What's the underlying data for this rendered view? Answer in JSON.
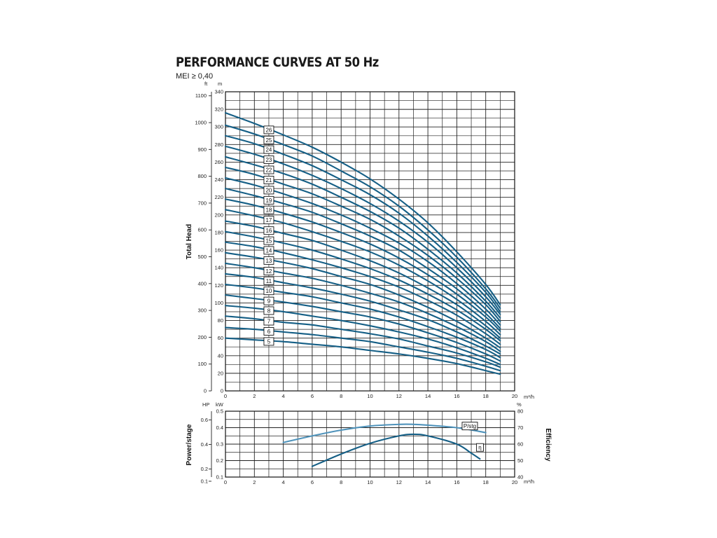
{
  "title": "PERFORMANCE CURVES AT 50 Hz",
  "subtitle": "MEI ≥ 0,40",
  "colors": {
    "curve": "#155f86",
    "curve_secondary": "#4f93bb",
    "grid": "#222222"
  },
  "chart_data": [
    {
      "type": "line",
      "xlabel": "m³/h",
      "ylabel": "Total Head",
      "y_units": [
        "ft",
        "m"
      ],
      "xlim": [
        0,
        20
      ],
      "ylim": [
        0,
        340
      ],
      "ylim_ft": [
        0,
        1115
      ],
      "x_ticks": [
        0,
        2,
        4,
        6,
        8,
        10,
        12,
        14,
        16,
        18,
        20
      ],
      "y_ticks_m": [
        0,
        20,
        40,
        60,
        80,
        100,
        120,
        140,
        160,
        180,
        200,
        220,
        240,
        260,
        280,
        300,
        320,
        340
      ],
      "y_ticks_ft": [
        0,
        100,
        200,
        300,
        400,
        500,
        600,
        700,
        800,
        900,
        1000,
        1100
      ],
      "grid": true,
      "series_label_x": 3,
      "curve_x": [
        0,
        2,
        4,
        6,
        8,
        10,
        12,
        14,
        16,
        18,
        19
      ],
      "series": [
        {
          "name": "5",
          "values": [
            60,
            58,
            56,
            53,
            50,
            46,
            42,
            37,
            31,
            23,
            19
          ]
        },
        {
          "name": "6",
          "values": [
            72,
            70,
            67,
            64,
            60,
            56,
            50,
            44,
            37,
            28,
            23
          ]
        },
        {
          "name": "7",
          "values": [
            85,
            82,
            78,
            75,
            70,
            65,
            59,
            51,
            43,
            33,
            27
          ]
        },
        {
          "name": "8",
          "values": [
            97,
            94,
            90,
            85,
            80,
            74,
            67,
            59,
            49,
            37,
            30
          ]
        },
        {
          "name": "9",
          "values": [
            109,
            105,
            101,
            96,
            90,
            84,
            76,
            66,
            55,
            42,
            34
          ]
        },
        {
          "name": "10",
          "values": [
            121,
            117,
            112,
            107,
            100,
            93,
            84,
            73,
            61,
            47,
            38
          ]
        },
        {
          "name": "11",
          "values": [
            133,
            129,
            123,
            117,
            110,
            102,
            92,
            81,
            67,
            51,
            42
          ]
        },
        {
          "name": "12",
          "values": [
            145,
            140,
            134,
            128,
            120,
            111,
            101,
            88,
            73,
            56,
            45
          ]
        },
        {
          "name": "13",
          "values": [
            157,
            152,
            146,
            139,
            130,
            121,
            109,
            95,
            79,
            60,
            49
          ]
        },
        {
          "name": "14",
          "values": [
            169,
            164,
            157,
            149,
            140,
            130,
            118,
            103,
            86,
            65,
            53
          ]
        },
        {
          "name": "15",
          "values": [
            181,
            175,
            168,
            160,
            150,
            139,
            126,
            110,
            92,
            70,
            57
          ]
        },
        {
          "name": "16",
          "values": [
            193,
            187,
            179,
            171,
            160,
            148,
            134,
            117,
            98,
            74,
            60
          ]
        },
        {
          "name": "17",
          "values": [
            206,
            199,
            191,
            181,
            170,
            158,
            143,
            125,
            104,
            79,
            64
          ]
        },
        {
          "name": "18",
          "values": [
            218,
            211,
            202,
            192,
            180,
            167,
            151,
            132,
            110,
            84,
            68
          ]
        },
        {
          "name": "19",
          "values": [
            230,
            222,
            213,
            203,
            190,
            176,
            160,
            139,
            116,
            88,
            71
          ]
        },
        {
          "name": "20",
          "values": [
            242,
            234,
            224,
            213,
            200,
            185,
            168,
            147,
            122,
            93,
            75
          ]
        },
        {
          "name": "21",
          "values": [
            254,
            246,
            235,
            224,
            210,
            195,
            176,
            154,
            128,
            98,
            79
          ]
        },
        {
          "name": "22",
          "values": [
            266,
            257,
            247,
            235,
            220,
            204,
            185,
            161,
            134,
            102,
            83
          ]
        },
        {
          "name": "23",
          "values": [
            278,
            269,
            258,
            245,
            230,
            213,
            193,
            169,
            140,
            107,
            87
          ]
        },
        {
          "name": "24",
          "values": [
            290,
            281,
            269,
            256,
            240,
            223,
            202,
            176,
            146,
            112,
            90
          ]
        },
        {
          "name": "25",
          "values": [
            302,
            292,
            280,
            267,
            250,
            232,
            210,
            183,
            152,
            116,
            94
          ]
        },
        {
          "name": "26",
          "values": [
            316,
            304,
            291,
            277,
            260,
            241,
            218,
            191,
            158,
            121,
            98
          ]
        }
      ]
    },
    {
      "type": "line",
      "xlabel": "m³/h",
      "ylabel": "Power/stage",
      "ylabel_right": "Efficiency",
      "y_units": [
        "HP",
        "kW"
      ],
      "y_unit_right": "%",
      "xlim": [
        0,
        20
      ],
      "ylim_kw": [
        0.1,
        0.5
      ],
      "ylim_pct": [
        40,
        80
      ],
      "x_ticks": [
        0,
        2,
        4,
        6,
        8,
        10,
        12,
        14,
        16,
        18,
        20
      ],
      "y_ticks_kw": [
        "0.1",
        "0.2",
        "0.3",
        "0.4",
        "0.5"
      ],
      "y_ticks_hp": [
        "0.1",
        "0.2",
        "0.4",
        "0.6"
      ],
      "y_ticks_pct": [
        "40",
        "50",
        "60",
        "70",
        "80"
      ],
      "grid": true,
      "series": [
        {
          "name": "P/stg",
          "axis": "kW",
          "x": [
            4,
            6,
            8,
            10,
            12,
            13,
            14,
            16,
            18
          ],
          "values": [
            0.31,
            0.35,
            0.385,
            0.41,
            0.42,
            0.42,
            0.415,
            0.4,
            0.37
          ]
        },
        {
          "name": "η",
          "axis": "%",
          "x": [
            6,
            8,
            10,
            12,
            13,
            14,
            16,
            17,
            17.6
          ],
          "values": [
            46.5,
            54,
            60.5,
            65,
            66,
            65,
            60,
            54.5,
            51
          ]
        }
      ]
    }
  ]
}
